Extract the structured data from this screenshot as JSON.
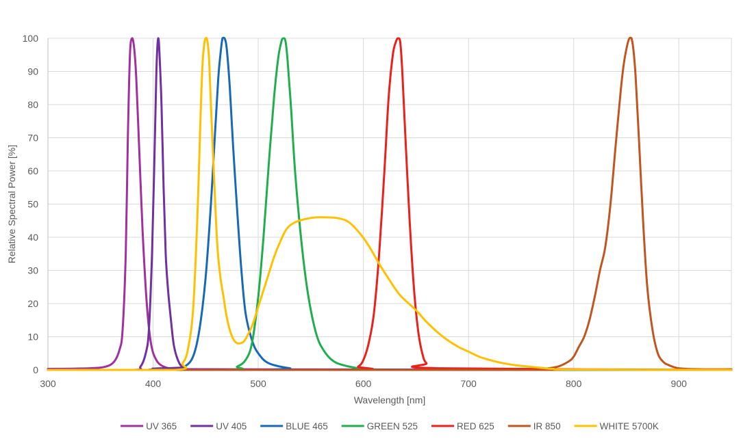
{
  "chart_data": {
    "type": "line",
    "xlabel": "Wavelength [nm]",
    "ylabel": "Relative Spectral Power [%]",
    "xlim": [
      300,
      950
    ],
    "ylim": [
      0,
      100
    ],
    "xticks": [
      300,
      400,
      500,
      600,
      700,
      800,
      900
    ],
    "yticks": [
      0,
      10,
      20,
      30,
      40,
      50,
      60,
      70,
      80,
      90,
      100
    ],
    "grid": true,
    "legend_position": "bottom",
    "series": [
      {
        "name": "UV 365",
        "color": "#a0309b",
        "x": [
          300,
          340,
          355,
          363,
          368,
          371,
          374,
          376,
          378,
          380,
          382,
          384,
          387,
          390,
          394,
          398,
          403,
          410,
          420,
          440,
          950
        ],
        "y": [
          0.3,
          0.5,
          1,
          2.5,
          6,
          12,
          35,
          70,
          95,
          100,
          97,
          88,
          65,
          42,
          20,
          8,
          3,
          1,
          0.3,
          0,
          0
        ]
      },
      {
        "name": "UV 405",
        "color": "#7030a0",
        "x": [
          300,
          380,
          388,
          393,
          396,
          399,
          401,
          403,
          404,
          405,
          406,
          408,
          410,
          412,
          414,
          417,
          420,
          425,
          430,
          440,
          950
        ],
        "y": [
          0,
          0,
          1,
          5,
          12,
          35,
          60,
          88,
          97,
          100,
          96,
          80,
          55,
          35,
          25,
          15,
          7,
          2,
          0.8,
          0.2,
          0
        ]
      },
      {
        "name": "BLUE 465",
        "color": "#1768b8",
        "x": [
          300,
          420,
          430,
          438,
          444,
          450,
          455,
          459,
          462,
          464,
          466,
          468,
          470,
          473,
          476,
          480,
          484,
          488,
          494,
          500,
          510,
          530,
          550,
          950
        ],
        "y": [
          0,
          0,
          1,
          4,
          12,
          28,
          50,
          72,
          88,
          95,
          100,
          100,
          97,
          85,
          68,
          48,
          30,
          17,
          9,
          5,
          2,
          0.5,
          0,
          0
        ]
      },
      {
        "name": "GREEN 525",
        "color": "#1fad4d",
        "x": [
          300,
          470,
          480,
          488,
          494,
          500,
          505,
          510,
          515,
          519,
          522,
          524,
          526,
          528,
          531,
          535,
          540,
          545,
          550,
          556,
          562,
          570,
          580,
          600,
          630,
          950
        ],
        "y": [
          0,
          0,
          1,
          3,
          8,
          22,
          40,
          62,
          82,
          94,
          99,
          100,
          99,
          93,
          80,
          60,
          42,
          28,
          18,
          10,
          6,
          3,
          1.5,
          0.3,
          0,
          0
        ]
      },
      {
        "name": "RED 625",
        "color": "#e8211a",
        "x": [
          300,
          585,
          595,
          600,
          605,
          610,
          615,
          620,
          624,
          628,
          631,
          633,
          635,
          637,
          640,
          644,
          648,
          652,
          656,
          660,
          670,
          950
        ],
        "y": [
          0,
          0,
          1,
          3,
          8,
          17,
          35,
          60,
          82,
          95,
          99,
          100,
          99,
          90,
          70,
          45,
          25,
          12,
          5,
          2,
          0.5,
          0
        ]
      },
      {
        "name": "IR 850",
        "color": "#c0551f",
        "x": [
          300,
          750,
          770,
          785,
          795,
          800,
          805,
          810,
          815,
          820,
          825,
          830,
          835,
          840,
          845,
          848,
          851,
          853,
          855,
          857,
          859,
          862,
          866,
          870,
          875,
          880,
          885,
          890,
          900,
          920,
          950
        ],
        "y": [
          0,
          0,
          0.3,
          1,
          2.5,
          4,
          7,
          10,
          15,
          22,
          30,
          37,
          50,
          68,
          85,
          93,
          98,
          100,
          100,
          96,
          88,
          70,
          45,
          25,
          12,
          5,
          2.5,
          1.5,
          0.5,
          0.2,
          0.2
        ]
      },
      {
        "name": "WHITE 5700K",
        "color": "#ffc000",
        "x": [
          300,
          420,
          428,
          433,
          438,
          442,
          445,
          447,
          449,
          451,
          453,
          455,
          458,
          461,
          464,
          467,
          470,
          474,
          478,
          482,
          486,
          490,
          495,
          500,
          505,
          510,
          515,
          520,
          527,
          535,
          545,
          555,
          565,
          575,
          585,
          595,
          605,
          615,
          625,
          635,
          650,
          660,
          670,
          680,
          690,
          700,
          710,
          720,
          730,
          745,
          760,
          770,
          780,
          800,
          950
        ],
        "y": [
          0,
          0,
          2,
          6,
          18,
          45,
          75,
          92,
          99,
          100,
          95,
          80,
          58,
          38,
          28,
          22,
          16,
          11,
          8.5,
          8,
          8.5,
          10.5,
          14,
          19,
          24,
          29,
          34,
          38,
          42.5,
          44.5,
          45.5,
          46,
          46,
          45.8,
          44.8,
          41.8,
          37.5,
          32,
          27,
          22.5,
          18,
          14.5,
          11.5,
          9,
          7,
          5.5,
          4,
          3,
          2.2,
          1.4,
          0.9,
          0.6,
          0.3,
          0.1,
          0
        ]
      }
    ]
  }
}
